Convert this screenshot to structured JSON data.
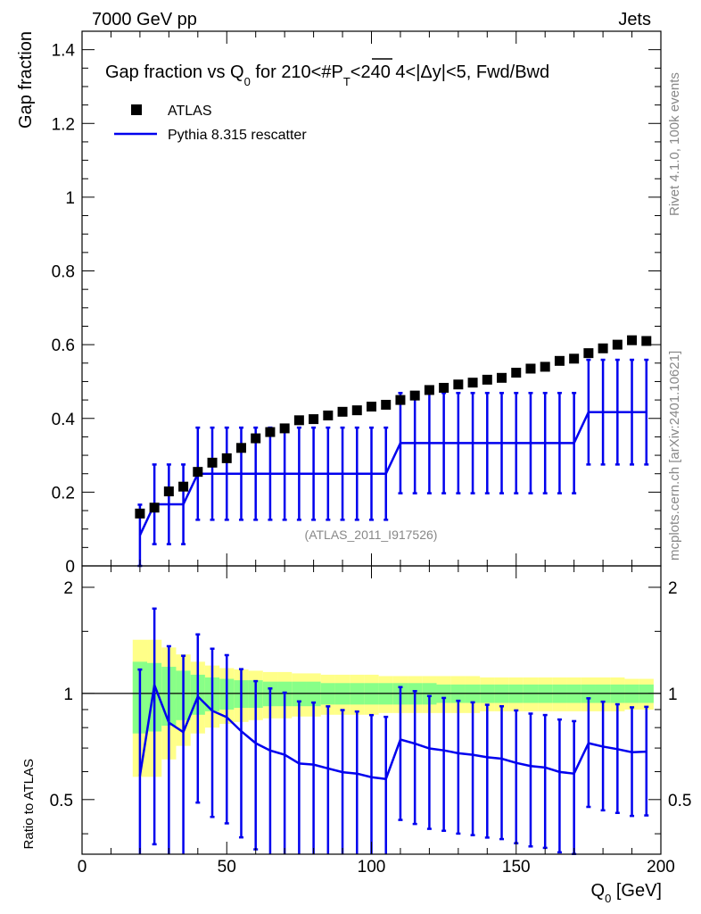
{
  "header": {
    "left_label": "7000 GeV pp",
    "right_label": "Jets"
  },
  "side_labels": {
    "rivet": "Rivet 4.1.0,  100k events",
    "mcplots": "mcplots.cern.ch [arXiv:2401.10621]"
  },
  "chart_data": {
    "type": "scatter",
    "title_main": "Gap fraction vs Q",
    "title_sub": "0",
    "title_rest": " for 210<#P",
    "title_pt_sub": "T",
    "title_tail": "<240  4<|Δy|<5, Fwd/Bwd",
    "analysis_id": "(ATLAS_2011_I917526)",
    "ylabel": "Gap fraction",
    "ratio_ylabel": "Ratio to ATLAS",
    "xlabel_main": "Q",
    "xlabel_sub": "0",
    "xlabel_unit": " [GeV]",
    "xlim": [
      0,
      200
    ],
    "ylim": [
      0,
      1.45
    ],
    "ratio_ylim": [
      0.35,
      2.3
    ],
    "x_ticks": [
      "0",
      "50",
      "100",
      "150",
      "200"
    ],
    "y_ticks": [
      "0",
      "0.2",
      "0.4",
      "0.6",
      "0.8",
      "1",
      "1.2",
      "1.4"
    ],
    "ratio_ticks": [
      "0.5",
      "1",
      "2"
    ],
    "legend": {
      "data_label": "ATLAS",
      "mc_label": "Pythia 8.315 rescatter"
    },
    "data_series": {
      "name": "ATLAS",
      "x": [
        20,
        25,
        30,
        35,
        40,
        45,
        50,
        55,
        60,
        65,
        70,
        75,
        80,
        85,
        90,
        95,
        100,
        105,
        110,
        115,
        120,
        125,
        130,
        135,
        140,
        145,
        150,
        155,
        160,
        165,
        170,
        175,
        180,
        185,
        190,
        195
      ],
      "y": [
        0.142,
        0.158,
        0.202,
        0.215,
        0.255,
        0.28,
        0.292,
        0.32,
        0.346,
        0.363,
        0.373,
        0.395,
        0.398,
        0.408,
        0.418,
        0.422,
        0.432,
        0.437,
        0.45,
        0.462,
        0.477,
        0.483,
        0.492,
        0.497,
        0.505,
        0.51,
        0.524,
        0.535,
        0.54,
        0.556,
        0.562,
        0.577,
        0.59,
        0.6,
        0.612,
        0.61
      ],
      "tot_band": [
        0.42,
        0.42,
        0.35,
        0.29,
        0.23,
        0.2,
        0.18,
        0.17,
        0.16,
        0.15,
        0.15,
        0.14,
        0.14,
        0.13,
        0.13,
        0.13,
        0.13,
        0.12,
        0.12,
        0.12,
        0.12,
        0.12,
        0.12,
        0.12,
        0.11,
        0.11,
        0.11,
        0.11,
        0.11,
        0.11,
        0.11,
        0.11,
        0.11,
        0.11,
        0.1,
        0.1
      ],
      "stat_band": [
        0.23,
        0.22,
        0.19,
        0.16,
        0.13,
        0.11,
        0.1,
        0.09,
        0.09,
        0.08,
        0.08,
        0.08,
        0.08,
        0.07,
        0.07,
        0.07,
        0.07,
        0.07,
        0.07,
        0.07,
        0.07,
        0.06,
        0.06,
        0.06,
        0.06,
        0.06,
        0.06,
        0.06,
        0.06,
        0.06,
        0.06,
        0.06,
        0.06,
        0.06,
        0.06,
        0.06
      ]
    },
    "mc_series": {
      "name": "Pythia 8.315 rescatter",
      "x": [
        20,
        25,
        30,
        35,
        40,
        45,
        50,
        55,
        60,
        65,
        70,
        75,
        80,
        85,
        90,
        95,
        100,
        105,
        110,
        115,
        120,
        125,
        130,
        135,
        140,
        145,
        150,
        155,
        160,
        165,
        170,
        175,
        180,
        185,
        190,
        195
      ],
      "y": [
        0.083,
        0.167,
        0.167,
        0.167,
        0.25,
        0.25,
        0.25,
        0.25,
        0.25,
        0.25,
        0.25,
        0.25,
        0.25,
        0.25,
        0.25,
        0.25,
        0.25,
        0.25,
        0.333,
        0.333,
        0.333,
        0.333,
        0.333,
        0.333,
        0.333,
        0.333,
        0.333,
        0.333,
        0.333,
        0.333,
        0.333,
        0.417,
        0.417,
        0.417,
        0.417,
        0.417
      ],
      "err": [
        0.083,
        0.108,
        0.108,
        0.108,
        0.125,
        0.125,
        0.125,
        0.125,
        0.125,
        0.125,
        0.125,
        0.125,
        0.125,
        0.125,
        0.125,
        0.125,
        0.125,
        0.125,
        0.136,
        0.136,
        0.136,
        0.136,
        0.136,
        0.136,
        0.136,
        0.136,
        0.136,
        0.136,
        0.136,
        0.136,
        0.136,
        0.142,
        0.142,
        0.142,
        0.142,
        0.142
      ]
    }
  }
}
